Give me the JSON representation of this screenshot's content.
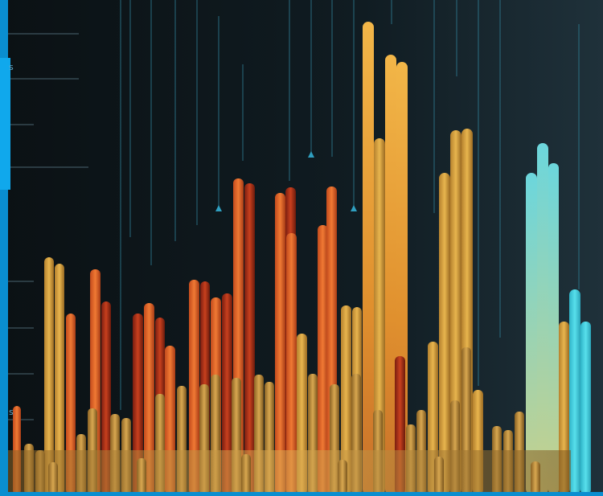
{
  "labels": [
    "s",
    "s"
  ]
}
